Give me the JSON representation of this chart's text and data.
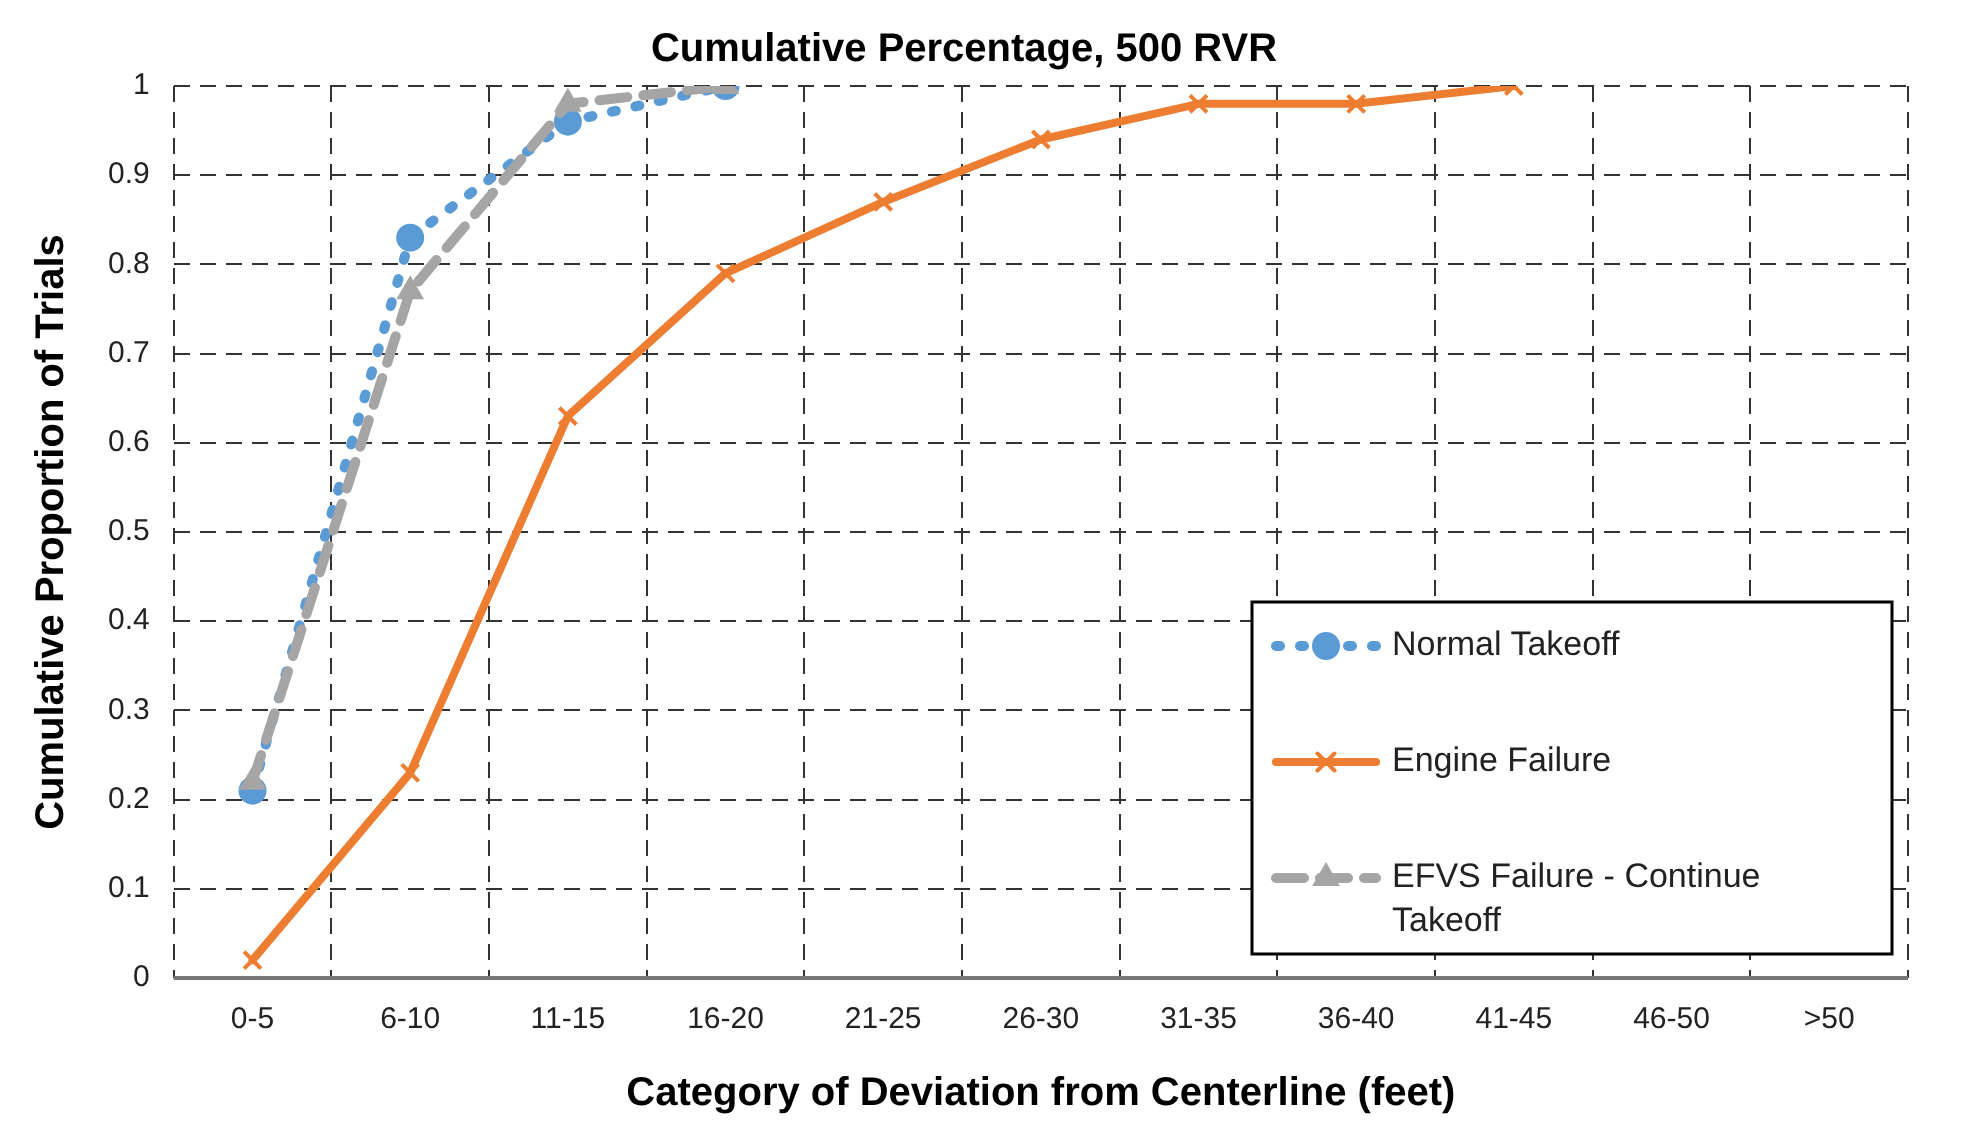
{
  "chart_data": {
    "type": "line",
    "title": "Cumulative Percentage, 500 RVR",
    "xlabel": "Category of Deviation from Centerline (feet)",
    "ylabel": "Cumulative Proportion of Trials",
    "categories": [
      "0-5",
      "6-10",
      "11-15",
      "16-20",
      "21-25",
      "26-30",
      "31-35",
      "36-40",
      "41-45",
      "46-50",
      ">50"
    ],
    "series": [
      {
        "name": "Normal Takeoff",
        "color": "#5b9bd5",
        "marker": "circle",
        "line_style": "dotted",
        "values": [
          0.21,
          0.83,
          0.96,
          1.0,
          null,
          null,
          null,
          null,
          null,
          null,
          null
        ]
      },
      {
        "name": "Engine Failure",
        "color": "#ed7d31",
        "marker": "cross",
        "line_style": "solid",
        "values": [
          0.02,
          0.23,
          0.63,
          0.79,
          0.87,
          0.94,
          0.98,
          0.98,
          1.0,
          null,
          null
        ]
      },
      {
        "name": "EFVS Failure - Continue Takeoff",
        "color": "#a5a5a5",
        "marker": "triangle",
        "line_style": "dashed",
        "values": [
          0.22,
          0.77,
          0.98,
          1.0,
          null,
          null,
          null,
          null,
          null,
          null,
          null
        ]
      }
    ],
    "ylim": [
      0,
      1
    ],
    "yticks": [
      0,
      0.1,
      0.2,
      0.3,
      0.4,
      0.5,
      0.6,
      0.7,
      0.8,
      0.9,
      1
    ],
    "grid": true,
    "legend": "bottom right"
  }
}
